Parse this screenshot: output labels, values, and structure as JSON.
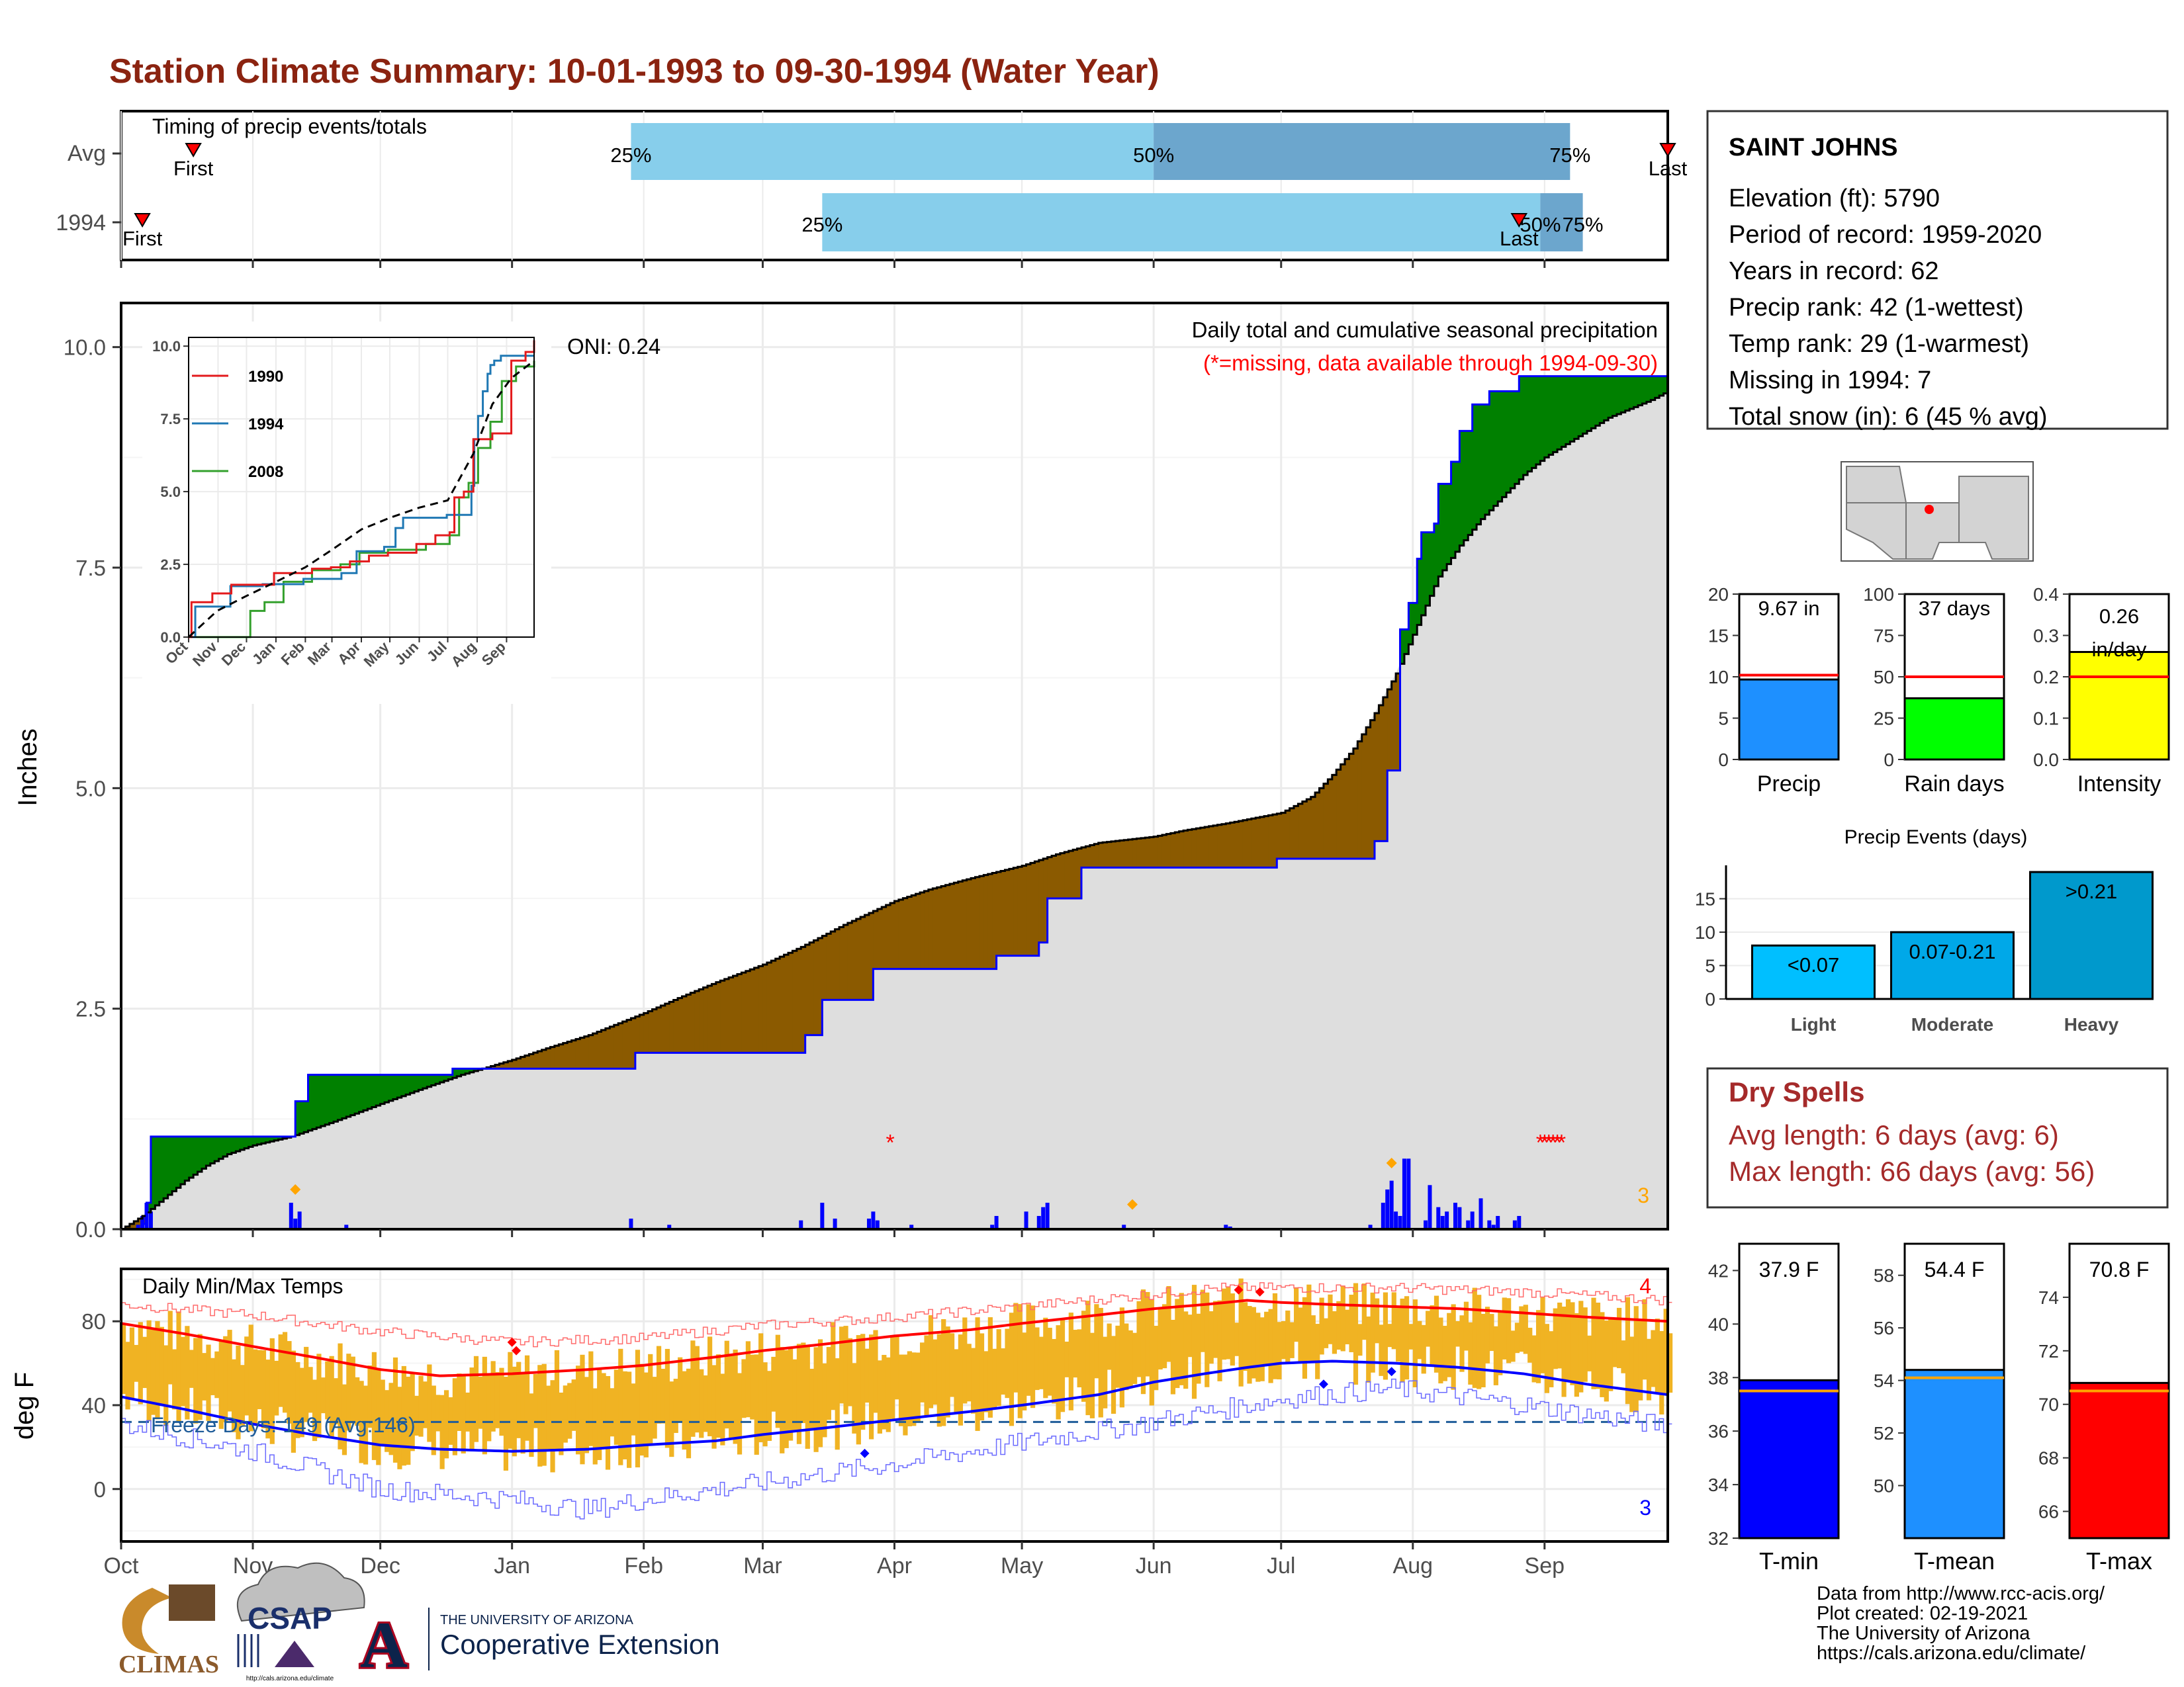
{
  "title": "Station Climate Summary: 10-01-1993 to 09-30-1994 (Water Year)",
  "colors": {
    "title": "#8b2310",
    "q_light": "#87ceeb",
    "q_dark": "#6ca6cd",
    "green": "#008000",
    "brown": "#8b5a00",
    "grey_fill": "#dedede",
    "obs_line": "#0000ff",
    "precip_bar": "#0000ff",
    "missing": "#ff0000",
    "tmax": "#ff0000",
    "tmin": "#0000ff",
    "temp_bar": "#f0b323",
    "freeze": "#1f5c99",
    "dry": "#a52a2a",
    "extreme_marker": "#ffa500"
  },
  "timing": {
    "label": "Timing of precip events/totals",
    "rows": [
      "Avg",
      "1994"
    ],
    "avg": {
      "first_day": 17,
      "last_day": 364,
      "q25": 120,
      "q50": 243,
      "q75": 341,
      "first_label": "First",
      "last_label": "Last",
      "q25_label": "25%",
      "q50_label": "50%",
      "q75_label": "75%"
    },
    "y1994": {
      "first_day": 5,
      "last_day": 329,
      "q25": 165,
      "q50": 334,
      "q75": 344,
      "first_label": "First",
      "last_label": "Last",
      "q25_label": "25%",
      "q50_label": "50%",
      "q75_label": "75%"
    }
  },
  "precip": {
    "ylabel": "Inches",
    "y_ticks": [
      "0.0",
      "2.5",
      "5.0",
      "7.5",
      "10.0"
    ],
    "ylim": [
      0,
      10.5
    ],
    "legend_title": "Daily total and cumulative seasonal precipitation",
    "legend_sub": "(*=missing, data available through 1994-09-30)",
    "oni": "ONI: 0.24",
    "extreme_count": "3",
    "avg_cum": [
      [
        0,
        0
      ],
      [
        5,
        0.15
      ],
      [
        10,
        0.35
      ],
      [
        15,
        0.55
      ],
      [
        20,
        0.72
      ],
      [
        25,
        0.85
      ],
      [
        31,
        0.95
      ],
      [
        40,
        1.05
      ],
      [
        50,
        1.22
      ],
      [
        61,
        1.42
      ],
      [
        70,
        1.58
      ],
      [
        80,
        1.75
      ],
      [
        92,
        1.92
      ],
      [
        100,
        2.05
      ],
      [
        110,
        2.2
      ],
      [
        123,
        2.45
      ],
      [
        131,
        2.62
      ],
      [
        140,
        2.8
      ],
      [
        151,
        3.0
      ],
      [
        160,
        3.2
      ],
      [
        170,
        3.45
      ],
      [
        182,
        3.72
      ],
      [
        190,
        3.85
      ],
      [
        200,
        3.98
      ],
      [
        212,
        4.12
      ],
      [
        220,
        4.25
      ],
      [
        230,
        4.38
      ],
      [
        243,
        4.45
      ],
      [
        250,
        4.52
      ],
      [
        260,
        4.6
      ],
      [
        273,
        4.72
      ],
      [
        280,
        4.9
      ],
      [
        285,
        5.15
      ],
      [
        290,
        5.45
      ],
      [
        295,
        5.85
      ],
      [
        300,
        6.3
      ],
      [
        305,
        6.85
      ],
      [
        310,
        7.4
      ],
      [
        315,
        7.75
      ],
      [
        320,
        8.05
      ],
      [
        325,
        8.3
      ],
      [
        330,
        8.55
      ],
      [
        335,
        8.75
      ],
      [
        340,
        8.9
      ],
      [
        345,
        9.05
      ],
      [
        350,
        9.2
      ],
      [
        355,
        9.3
      ],
      [
        360,
        9.4
      ],
      [
        364,
        9.5
      ]
    ],
    "obs_cum": [
      [
        0,
        0
      ],
      [
        5,
        0.06
      ],
      [
        6,
        0.3
      ],
      [
        7,
        1.05
      ],
      [
        40,
        1.05
      ],
      [
        41,
        1.45
      ],
      [
        44,
        1.75
      ],
      [
        55,
        1.75
      ],
      [
        78,
        1.82
      ],
      [
        120,
        1.82
      ],
      [
        121,
        2.0
      ],
      [
        160,
        2.0
      ],
      [
        161,
        2.2
      ],
      [
        165,
        2.6
      ],
      [
        176,
        2.6
      ],
      [
        177,
        2.95
      ],
      [
        205,
        2.95
      ],
      [
        206,
        3.1
      ],
      [
        216,
        3.25
      ],
      [
        218,
        3.75
      ],
      [
        224,
        3.75
      ],
      [
        226,
        4.1
      ],
      [
        268,
        4.1
      ],
      [
        272,
        4.2
      ],
      [
        294,
        4.2
      ],
      [
        295,
        4.4
      ],
      [
        297,
        4.4
      ],
      [
        298,
        5.2
      ],
      [
        300,
        5.2
      ],
      [
        301,
        6.8
      ],
      [
        303,
        7.1
      ],
      [
        305,
        7.6
      ],
      [
        306,
        7.9
      ],
      [
        309,
        8.0
      ],
      [
        310,
        8.45
      ],
      [
        312,
        8.45
      ],
      [
        313,
        8.7
      ],
      [
        315,
        9.05
      ],
      [
        317,
        9.05
      ],
      [
        318,
        9.35
      ],
      [
        321,
        9.35
      ],
      [
        322,
        9.5
      ],
      [
        328,
        9.5
      ],
      [
        329,
        9.67
      ],
      [
        364,
        9.67
      ]
    ],
    "bars": [
      [
        4,
        0.05
      ],
      [
        5,
        0.15
      ],
      [
        6,
        0.3
      ],
      [
        7,
        0.2
      ],
      [
        40,
        0.3
      ],
      [
        41,
        0.12
      ],
      [
        42,
        0.2
      ],
      [
        53,
        0.05
      ],
      [
        120,
        0.12
      ],
      [
        129,
        0.05
      ],
      [
        160,
        0.1
      ],
      [
        165,
        0.3
      ],
      [
        168,
        0.12
      ],
      [
        176,
        0.12
      ],
      [
        177,
        0.2
      ],
      [
        178,
        0.1
      ],
      [
        186,
        0.05
      ],
      [
        205,
        0.05
      ],
      [
        206,
        0.15
      ],
      [
        213,
        0.2
      ],
      [
        216,
        0.15
      ],
      [
        217,
        0.25
      ],
      [
        218,
        0.3
      ],
      [
        236,
        0.05
      ],
      [
        260,
        0.05
      ],
      [
        261,
        0.03
      ],
      [
        294,
        0.05
      ],
      [
        297,
        0.3
      ],
      [
        298,
        0.45
      ],
      [
        299,
        0.55
      ],
      [
        300,
        0.2
      ],
      [
        301,
        0.15
      ],
      [
        302,
        0.8
      ],
      [
        303,
        0.8
      ],
      [
        307,
        0.1
      ],
      [
        308,
        0.5
      ],
      [
        310,
        0.25
      ],
      [
        311,
        0.15
      ],
      [
        312,
        0.2
      ],
      [
        314,
        0.3
      ],
      [
        315,
        0.25
      ],
      [
        317,
        0.1
      ],
      [
        318,
        0.2
      ],
      [
        320,
        0.35
      ],
      [
        322,
        0.1
      ],
      [
        323,
        0.05
      ],
      [
        324,
        0.15
      ],
      [
        328,
        0.1
      ],
      [
        329,
        0.15
      ]
    ],
    "missing_days": [
      181,
      334,
      335,
      336,
      337,
      338,
      339
    ],
    "extreme_markers": [
      [
        41,
        0.45
      ],
      [
        238,
        0.28
      ],
      [
        299,
        0.75
      ]
    ]
  },
  "inset": {
    "y_ticks": [
      "0.0",
      "2.5",
      "5.0",
      "7.5",
      "10.0"
    ],
    "x_ticks": [
      "Oct",
      "Nov",
      "Dec",
      "Jan",
      "Feb",
      "Mar",
      "Apr",
      "May",
      "Jun",
      "Jul",
      "Aug",
      "Sep"
    ],
    "legend": [
      {
        "name": "1990",
        "color": "#e31a1c"
      },
      {
        "name": "1994",
        "color": "#1f78b4"
      },
      {
        "name": "2008",
        "color": "#33a02c"
      }
    ],
    "series": {
      "s1990": [
        [
          0,
          0
        ],
        [
          3,
          1.2
        ],
        [
          20,
          1.2
        ],
        [
          25,
          1.5
        ],
        [
          40,
          1.5
        ],
        [
          45,
          1.8
        ],
        [
          80,
          1.8
        ],
        [
          90,
          2.2
        ],
        [
          130,
          2.35
        ],
        [
          150,
          2.4
        ],
        [
          170,
          2.6
        ],
        [
          190,
          2.8
        ],
        [
          210,
          2.9
        ],
        [
          240,
          3.2
        ],
        [
          260,
          3.5
        ],
        [
          275,
          3.6
        ],
        [
          280,
          4.8
        ],
        [
          290,
          5.0
        ],
        [
          300,
          6.8
        ],
        [
          320,
          7.0
        ],
        [
          340,
          9.5
        ],
        [
          355,
          9.8
        ],
        [
          364,
          10.2
        ]
      ],
      "s1994": [
        [
          0,
          0
        ],
        [
          7,
          1.05
        ],
        [
          40,
          1.05
        ],
        [
          44,
          1.75
        ],
        [
          78,
          1.82
        ],
        [
          121,
          2.0
        ],
        [
          161,
          2.2
        ],
        [
          177,
          2.95
        ],
        [
          206,
          3.1
        ],
        [
          218,
          3.75
        ],
        [
          226,
          4.1
        ],
        [
          272,
          4.2
        ],
        [
          298,
          5.2
        ],
        [
          301,
          6.8
        ],
        [
          305,
          7.6
        ],
        [
          310,
          8.45
        ],
        [
          315,
          9.05
        ],
        [
          318,
          9.35
        ],
        [
          322,
          9.5
        ],
        [
          329,
          9.67
        ],
        [
          364,
          9.67
        ]
      ],
      "s2008": [
        [
          0,
          0
        ],
        [
          60,
          0
        ],
        [
          65,
          0.9
        ],
        [
          80,
          1.2
        ],
        [
          100,
          1.9
        ],
        [
          130,
          2.3
        ],
        [
          160,
          2.5
        ],
        [
          180,
          2.9
        ],
        [
          210,
          3.0
        ],
        [
          250,
          3.2
        ],
        [
          275,
          3.5
        ],
        [
          285,
          4.8
        ],
        [
          295,
          5.3
        ],
        [
          305,
          6.5
        ],
        [
          318,
          7.4
        ],
        [
          330,
          8.8
        ],
        [
          345,
          9.3
        ],
        [
          364,
          9.5
        ]
      ],
      "avg": [
        [
          0,
          0
        ],
        [
          30,
          0.9
        ],
        [
          60,
          1.4
        ],
        [
          92,
          1.9
        ],
        [
          123,
          2.4
        ],
        [
          151,
          3.0
        ],
        [
          182,
          3.7
        ],
        [
          212,
          4.1
        ],
        [
          243,
          4.45
        ],
        [
          273,
          4.7
        ],
        [
          300,
          6.3
        ],
        [
          320,
          8.0
        ],
        [
          340,
          8.9
        ],
        [
          364,
          9.5
        ]
      ]
    }
  },
  "temp": {
    "ylabel": "deg F",
    "label": "Daily Min/Max Temps",
    "y_ticks": [
      "0",
      "40",
      "80"
    ],
    "ylim": [
      -25,
      105
    ],
    "freeze_label": "Freeze Days: 149 (Avg:146)",
    "freeze_line": 32,
    "count_max": "4",
    "count_min": "3",
    "avg_max": [
      [
        0,
        79
      ],
      [
        15,
        74
      ],
      [
        31,
        68
      ],
      [
        45,
        63
      ],
      [
        61,
        57
      ],
      [
        75,
        54
      ],
      [
        92,
        55
      ],
      [
        110,
        57
      ],
      [
        123,
        59
      ],
      [
        140,
        63
      ],
      [
        151,
        66
      ],
      [
        165,
        69
      ],
      [
        182,
        73
      ],
      [
        200,
        76
      ],
      [
        212,
        79
      ],
      [
        230,
        83
      ],
      [
        243,
        86
      ],
      [
        255,
        88
      ],
      [
        265,
        90
      ],
      [
        273,
        89
      ],
      [
        285,
        88
      ],
      [
        300,
        87
      ],
      [
        315,
        86
      ],
      [
        330,
        84
      ],
      [
        345,
        82
      ],
      [
        364,
        80
      ]
    ],
    "avg_min": [
      [
        0,
        44
      ],
      [
        15,
        38
      ],
      [
        31,
        31
      ],
      [
        45,
        26
      ],
      [
        61,
        21
      ],
      [
        75,
        19
      ],
      [
        92,
        18
      ],
      [
        110,
        19
      ],
      [
        123,
        21
      ],
      [
        140,
        23
      ],
      [
        151,
        26
      ],
      [
        165,
        29
      ],
      [
        182,
        33
      ],
      [
        200,
        37
      ],
      [
        212,
        40
      ],
      [
        230,
        45
      ],
      [
        243,
        51
      ],
      [
        255,
        55
      ],
      [
        265,
        58
      ],
      [
        273,
        60
      ],
      [
        285,
        61
      ],
      [
        300,
        60
      ],
      [
        315,
        58
      ],
      [
        330,
        55
      ],
      [
        345,
        50
      ],
      [
        364,
        45
      ]
    ],
    "rec_max": [
      [
        0,
        88
      ],
      [
        31,
        83
      ],
      [
        61,
        75
      ],
      [
        92,
        70
      ],
      [
        123,
        72
      ],
      [
        151,
        78
      ],
      [
        182,
        82
      ],
      [
        212,
        87
      ],
      [
        243,
        93
      ],
      [
        258,
        96
      ],
      [
        273,
        96
      ],
      [
        300,
        96
      ],
      [
        330,
        94
      ],
      [
        364,
        90
      ]
    ],
    "rec_min": [
      [
        0,
        31
      ],
      [
        31,
        18
      ],
      [
        61,
        0
      ],
      [
        92,
        -5
      ],
      [
        110,
        -10
      ],
      [
        123,
        -5
      ],
      [
        151,
        3
      ],
      [
        182,
        12
      ],
      [
        212,
        22
      ],
      [
        243,
        32
      ],
      [
        273,
        43
      ],
      [
        300,
        48
      ],
      [
        330,
        40
      ],
      [
        364,
        30
      ]
    ],
    "max_markers": [
      [
        92,
        70
      ],
      [
        93,
        66
      ],
      [
        263,
        95
      ],
      [
        268,
        94
      ]
    ],
    "min_markers": [
      [
        175,
        17
      ],
      [
        283,
        50
      ],
      [
        299,
        56
      ]
    ],
    "x_ticks": [
      "Oct",
      "Nov",
      "Dec",
      "Jan",
      "Feb",
      "Mar",
      "Apr",
      "May",
      "Jun",
      "Jul",
      "Aug",
      "Sep"
    ]
  },
  "station": {
    "name": "SAINT JOHNS",
    "lines": [
      "Elevation (ft): 5790",
      "Period of record: 1959-2020",
      "Years in record: 62",
      "Precip rank: 42 (1-wettest)",
      "Temp rank: 29 (1-warmest)",
      "Missing in 1994: 7",
      "Total snow (in): 6 (45 % avg)"
    ]
  },
  "summary_bars": [
    {
      "label": "Precip",
      "value_text": "9.67 in",
      "value": 9.67,
      "avg": 10.2,
      "max": 20,
      "ticks": [
        "0",
        "5",
        "10",
        "15",
        "20"
      ],
      "color": "#1e90ff"
    },
    {
      "label": "Rain days",
      "value_text": "37 days",
      "value": 37,
      "avg": 50,
      "max": 100,
      "ticks": [
        "0",
        "25",
        "50",
        "75",
        "100"
      ],
      "color": "#00ff00"
    },
    {
      "label": "Intensity",
      "value_text": "0.26 in/day",
      "value_text_1": "0.26",
      "value_text_2": "in/day",
      "value": 0.26,
      "avg": 0.2,
      "max": 0.4,
      "ticks": [
        "0.0",
        "0.1",
        "0.2",
        "0.3",
        "0.4"
      ],
      "color": "#ffff00"
    }
  ],
  "events": {
    "title": "Precip Events (days)",
    "categories": [
      "Light",
      "Moderate",
      "Heavy"
    ],
    "labels": [
      "<0.07",
      "0.07-0.21",
      ">0.21"
    ],
    "values": [
      8,
      10,
      19
    ],
    "ticks": [
      "0",
      "5",
      "10",
      "15"
    ],
    "color": "#0099cc",
    "color_light": "#00bfff"
  },
  "dry_spells": {
    "title": "Dry Spells",
    "avg_line": "Avg length: 6 days (avg: 6)",
    "max_line": "Max length: 66 days (avg: 56)"
  },
  "temp_bars": [
    {
      "label": "T-min",
      "value_text": "37.9 F",
      "value": 37.9,
      "avg": 37.5,
      "ymin": 32,
      "ymax": 43,
      "ticks": [
        "32",
        "34",
        "36",
        "38",
        "40",
        "42"
      ],
      "color": "#0000ff"
    },
    {
      "label": "T-mean",
      "value_text": "54.4 F",
      "value": 54.4,
      "avg": 54.1,
      "ymin": 48,
      "ymax": 59.2,
      "ticks": [
        "50",
        "52",
        "54",
        "56",
        "58"
      ],
      "color": "#1e90ff"
    },
    {
      "label": "T-max",
      "value_text": "70.8 F",
      "value": 70.8,
      "avg": 70.5,
      "ymin": 65,
      "ymax": 76,
      "ticks": [
        "66",
        "68",
        "70",
        "72",
        "74"
      ],
      "color": "#ff0000"
    }
  ],
  "footer": {
    "lines": [
      "Data from http://www.rcc-acis.org/",
      "Plot created: 02-19-2021",
      "The University of Arizona",
      "https://cals.arizona.edu/climate/"
    ],
    "climas": "CLIMAS",
    "csap": "CSAP",
    "csap_url": "http://cals.arizona.edu/climate",
    "ua_line1": "THE UNIVERSITY OF ARIZONA",
    "ua_line2": "Cooperative Extension",
    "ua_letter": "A"
  }
}
